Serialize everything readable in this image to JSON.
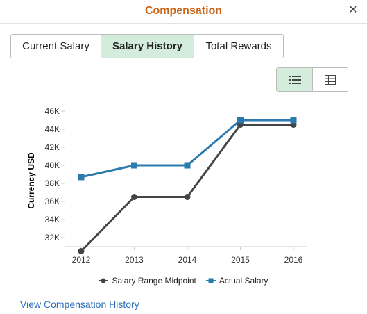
{
  "dialog": {
    "title": "Compensation",
    "close_symbol": "✕"
  },
  "tabs": [
    {
      "label": "Current Salary",
      "active": false
    },
    {
      "label": "Salary History",
      "active": true
    },
    {
      "label": "Total Rewards",
      "active": false
    }
  ],
  "view_toggle": {
    "list_icon": "list-icon",
    "grid_icon": "grid-icon",
    "selected": "list"
  },
  "chart_data": {
    "type": "line",
    "x": [
      "2012",
      "2013",
      "2014",
      "2015",
      "2016"
    ],
    "ylabel": "Currency USD",
    "ylim": [
      31000,
      46000
    ],
    "yticks": [
      32000,
      34000,
      36000,
      38000,
      40000,
      42000,
      44000,
      46000
    ],
    "ytick_labels": [
      "32K",
      "34K",
      "36K",
      "38K",
      "40K",
      "42K",
      "44K",
      "46K"
    ],
    "grid": false,
    "legend_position": "bottom",
    "series": [
      {
        "name": "Salary Range Midpoint",
        "marker": "circle",
        "color": "#444444",
        "values": [
          30500,
          36500,
          36500,
          44500,
          44500
        ]
      },
      {
        "name": "Actual Salary",
        "marker": "square",
        "color": "#2a7aad",
        "values": [
          38700,
          40000,
          40000,
          45000,
          45000
        ]
      }
    ]
  },
  "footer": {
    "link_label": "View Compensation History"
  }
}
